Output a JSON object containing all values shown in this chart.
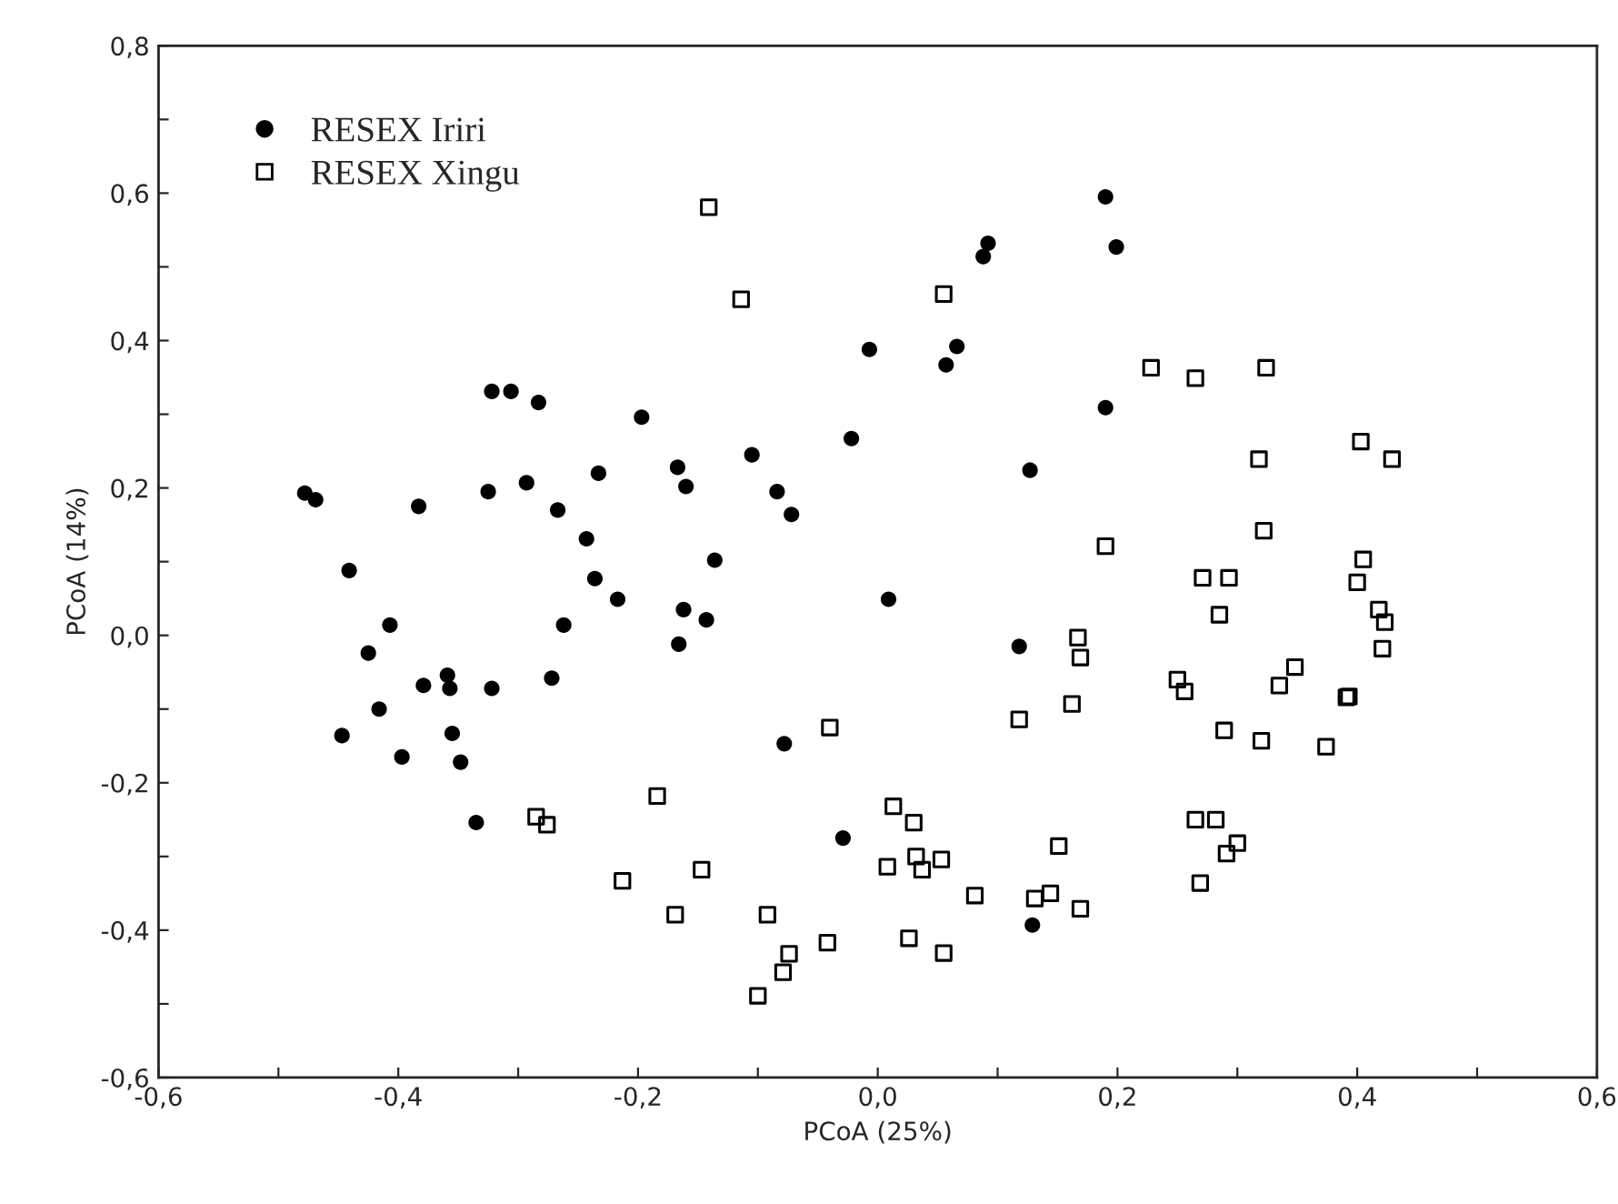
{
  "chart_data": {
    "type": "scatter",
    "xlabel": "PCoA (25%)",
    "ylabel": "PCoA (14%)",
    "xlim": [
      -0.6,
      0.6
    ],
    "ylim": [
      -0.6,
      0.8
    ],
    "xticks": [
      {
        "value": -0.6,
        "label": "-0,6"
      },
      {
        "value": -0.5,
        "label": null
      },
      {
        "value": -0.4,
        "label": "-0,4"
      },
      {
        "value": -0.3,
        "label": null
      },
      {
        "value": -0.2,
        "label": "-0,2"
      },
      {
        "value": -0.1,
        "label": null
      },
      {
        "value": 0,
        "label": "0,0"
      },
      {
        "value": 0.1,
        "label": null
      },
      {
        "value": 0.2,
        "label": "0,2"
      },
      {
        "value": 0.3,
        "label": null
      },
      {
        "value": 0.4,
        "label": "0,4"
      },
      {
        "value": 0.5,
        "label": null
      },
      {
        "value": 0.6,
        "label": "0,6"
      }
    ],
    "yticks": [
      {
        "value": -0.6,
        "label": "-0,6"
      },
      {
        "value": -0.5,
        "label": null
      },
      {
        "value": -0.4,
        "label": "-0,4"
      },
      {
        "value": -0.3,
        "label": null
      },
      {
        "value": -0.2,
        "label": "-0,2"
      },
      {
        "value": -0.1,
        "label": null
      },
      {
        "value": 0,
        "label": "0,0"
      },
      {
        "value": 0.1,
        "label": null
      },
      {
        "value": 0.2,
        "label": "0,2"
      },
      {
        "value": 0.3,
        "label": null
      },
      {
        "value": 0.4,
        "label": "0,4"
      },
      {
        "value": 0.5,
        "label": null
      },
      {
        "value": 0.6,
        "label": "0,6"
      },
      {
        "value": 0.7,
        "label": null
      },
      {
        "value": 0.8,
        "label": "0,8"
      }
    ],
    "grid": false,
    "legend": "top left",
    "series": [
      {
        "name": "RESEX Iriri",
        "color": "#000000",
        "marker": "circle",
        "x": [
          -0.478,
          -0.469,
          -0.007,
          -0.322,
          -0.306,
          -0.283,
          -0.197,
          -0.022,
          -0.167,
          -0.105,
          -0.16,
          -0.084,
          -0.072,
          -0.325,
          -0.293,
          -0.233,
          -0.267,
          -0.383,
          -0.243,
          -0.441,
          -0.236,
          -0.217,
          -0.136,
          -0.162,
          -0.143,
          -0.407,
          -0.262,
          -0.166,
          -0.425,
          0.19,
          0.199,
          0.092,
          0.088,
          0.066,
          0.057,
          0.19,
          0.127,
          0.009,
          0.118,
          -0.379,
          -0.359,
          -0.357,
          -0.322,
          -0.272,
          -0.416,
          -0.447,
          -0.355,
          -0.397,
          -0.348,
          -0.335,
          -0.078,
          -0.029,
          0.129
        ],
        "values": [
          0.193,
          0.184,
          0.388,
          0.331,
          0.331,
          0.316,
          0.296,
          0.267,
          0.228,
          0.245,
          0.202,
          0.195,
          0.164,
          0.195,
          0.207,
          0.22,
          0.17,
          0.175,
          0.131,
          0.088,
          0.077,
          0.049,
          0.102,
          0.035,
          0.021,
          0.014,
          0.014,
          -0.012,
          -0.024,
          0.595,
          0.527,
          0.532,
          0.514,
          0.392,
          0.367,
          0.309,
          0.224,
          0.049,
          -0.015,
          -0.068,
          -0.054,
          -0.072,
          -0.072,
          -0.058,
          -0.1,
          -0.136,
          -0.133,
          -0.165,
          -0.172,
          -0.254,
          -0.147,
          -0.275,
          -0.393
        ]
      },
      {
        "name": "RESEX Xingu",
        "color": "#000000",
        "marker": "square",
        "x": [
          -0.141,
          -0.114,
          0.055,
          0.228,
          0.265,
          0.324,
          0.318,
          0.403,
          0.429,
          0.322,
          0.19,
          0.271,
          0.293,
          0.405,
          0.4,
          0.285,
          0.418,
          0.423,
          0.421,
          0.167,
          0.169,
          -0.04,
          -0.184,
          -0.285,
          -0.276,
          -0.213,
          -0.147,
          -0.169,
          -0.092,
          -0.074,
          -0.079,
          -0.1,
          -0.042,
          0.162,
          0.118,
          0.25,
          0.256,
          0.348,
          0.335,
          0.391,
          0.393,
          0.289,
          0.32,
          0.374,
          0.013,
          0.03,
          0.008,
          0.032,
          0.037,
          0.053,
          0.081,
          0.131,
          0.144,
          0.169,
          0.151,
          0.026,
          0.055,
          0.265,
          0.282,
          0.3,
          0.291,
          0.269
        ],
        "values": [
          0.581,
          0.456,
          0.463,
          0.363,
          0.349,
          0.363,
          0.239,
          0.263,
          0.239,
          0.142,
          0.121,
          0.078,
          0.078,
          0.103,
          0.072,
          0.028,
          0.035,
          0.018,
          -0.018,
          -0.003,
          -0.03,
          -0.125,
          -0.218,
          -0.246,
          -0.257,
          -0.333,
          -0.318,
          -0.379,
          -0.379,
          -0.432,
          -0.457,
          -0.489,
          -0.417,
          -0.093,
          -0.114,
          -0.06,
          -0.076,
          -0.043,
          -0.068,
          -0.084,
          -0.083,
          -0.129,
          -0.143,
          -0.151,
          -0.232,
          -0.254,
          -0.314,
          -0.3,
          -0.318,
          -0.304,
          -0.353,
          -0.357,
          -0.35,
          -0.371,
          -0.286,
          -0.411,
          -0.431,
          -0.25,
          -0.25,
          -0.282,
          -0.296,
          -0.336
        ]
      }
    ]
  }
}
